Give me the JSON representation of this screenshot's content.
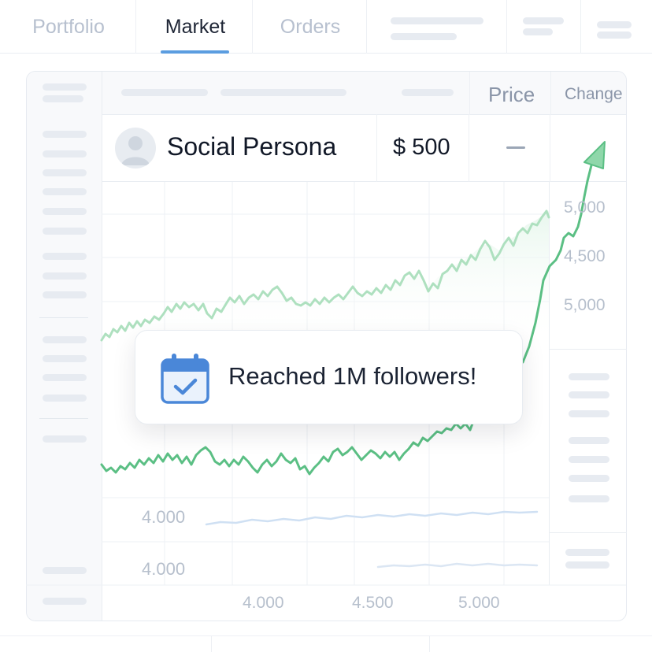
{
  "nav": {
    "tabs": [
      {
        "label": "Portfolio",
        "active": false
      },
      {
        "label": "Market",
        "active": true
      },
      {
        "label": "Orders",
        "active": false
      }
    ],
    "active_color": "#5b9de0"
  },
  "table": {
    "headers": {
      "price": "Price",
      "change": "Change"
    },
    "row": {
      "name": "Social Persona",
      "price": "$ 500",
      "change": "—",
      "avatar_icon": "user-avatar-icon"
    }
  },
  "chart": {
    "right_axis_labels": [
      "5,000",
      "4,500",
      "5,000"
    ],
    "left_axis_labels": [
      "4.000",
      "4.000"
    ],
    "x_axis_labels": [
      "4.000",
      "4.500",
      "5.000"
    ],
    "line_color": "#5bbf84",
    "light_line_color": "#aee0bf",
    "faint_line_color": "#cfe0f3",
    "trend_arrow_icon": "up-arrow-icon"
  },
  "tooltip": {
    "icon": "calendar-check-icon",
    "message": "Reached 1M followers!",
    "icon_color": "#4a87d8"
  }
}
